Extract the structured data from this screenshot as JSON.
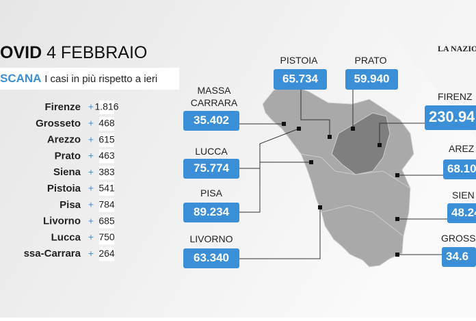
{
  "header": {
    "title_bold": "OVID",
    "title_date": "4 FEBBRAIO",
    "logo": "LA NAZIO"
  },
  "subheader": {
    "region": "SCANA",
    "text": "I casi in più rispetto a ieri"
  },
  "daily": {
    "sign": "+",
    "rows": [
      {
        "province": "Firenze",
        "value": "1.816"
      },
      {
        "province": "Grosseto",
        "value": "468"
      },
      {
        "province": "Arezzo",
        "value": "615"
      },
      {
        "province": "Prato",
        "value": "463"
      },
      {
        "province": "Siena",
        "value": "383"
      },
      {
        "province": "Pistoia",
        "value": "541"
      },
      {
        "province": "Pisa",
        "value": "784"
      },
      {
        "province": "Livorno",
        "value": "685"
      },
      {
        "province": "Lucca",
        "value": "750"
      },
      {
        "province": "ssa-Carrara",
        "value": "264"
      }
    ]
  },
  "map": {
    "labels": [
      {
        "name": "MASSA\nCARRARA",
        "value": "35.402"
      },
      {
        "name": "LUCCA",
        "value": "75.774"
      },
      {
        "name": "PISA",
        "value": "89.234"
      },
      {
        "name": "LIVORNO",
        "value": "63.340"
      },
      {
        "name": "PISTOIA",
        "value": "65.734"
      },
      {
        "name": "PRATO",
        "value": "59.940"
      },
      {
        "name": "FIRENZ",
        "value": "230.94"
      },
      {
        "name": "AREZ",
        "value": "68.10"
      },
      {
        "name": "SIEN",
        "value": "48.24"
      },
      {
        "name": "GROSS",
        "value": "34.6"
      }
    ]
  }
}
